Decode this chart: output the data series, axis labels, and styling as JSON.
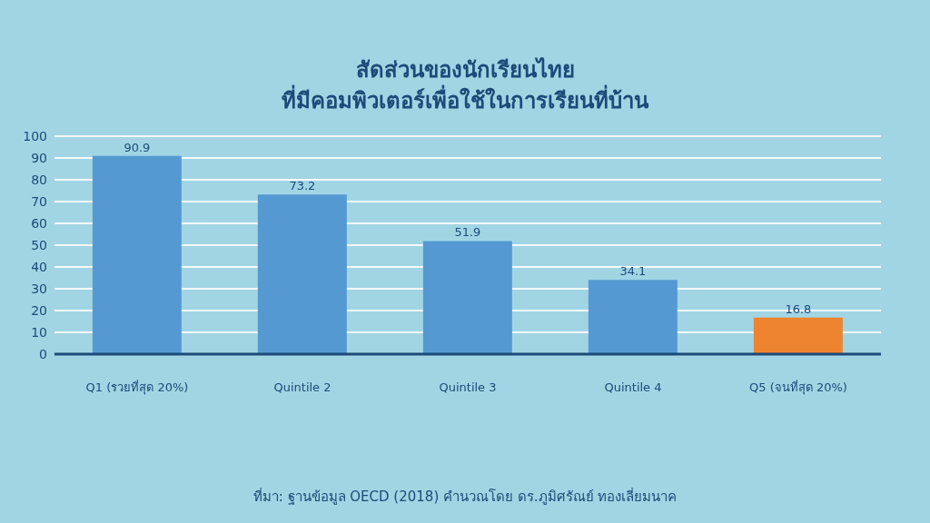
{
  "chart_data": {
    "type": "bar",
    "title": "สัดส่วนของนักเรียนไทย\nที่มีคอมพิวเตอร์เพื่อใช้ในการเรียนที่บ้าน",
    "categories": [
      "Q1 (รวยที่สุด 20%)",
      "Quintile 2",
      "Quintile 3",
      "Quintile 4",
      "Q5 (จนที่สุด 20%)"
    ],
    "values": [
      90.9,
      73.2,
      51.9,
      34.1,
      16.8
    ],
    "colors": [
      "#5599d2",
      "#5599d2",
      "#5599d2",
      "#5599d2",
      "#ee8330"
    ],
    "ylim": [
      0,
      100
    ],
    "yticks": [
      0,
      10,
      20,
      30,
      40,
      50,
      60,
      70,
      80,
      90,
      100
    ],
    "grid": "y",
    "data_labels": true,
    "annotations": [
      "ที่มา: ฐานข้อมูล OECD (2018) คำนวณโดย ดร.ภูมิศรัณย์ ทองเลี่ยมนาค"
    ]
  }
}
